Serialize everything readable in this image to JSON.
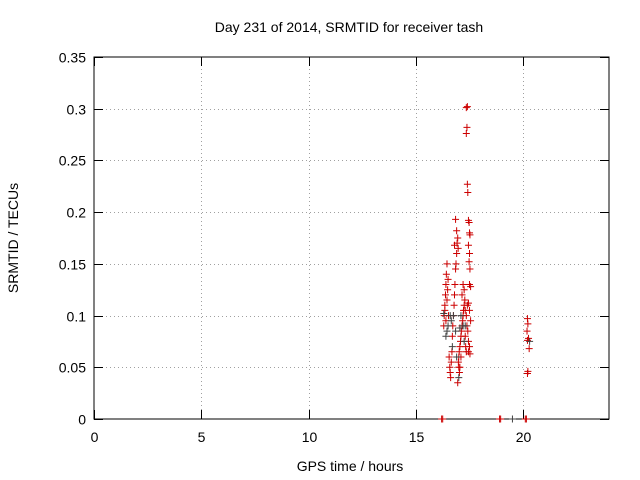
{
  "chart_data": {
    "type": "scatter",
    "title": "Day 231 of 2014, SRMTID for receiver tash",
    "xlabel": "GPS time / hours",
    "ylabel": "SRMTID / TECUs",
    "xlim": [
      0,
      24
    ],
    "ylim": [
      0,
      0.35
    ],
    "x_ticks": [
      0,
      5,
      10,
      15,
      20
    ],
    "x_tick_labels": [
      "0",
      "5",
      "10",
      "15",
      "20"
    ],
    "y_ticks": [
      0,
      0.05,
      0.1,
      0.15,
      0.2,
      0.25,
      0.3,
      0.35
    ],
    "y_tick_labels": [
      "0",
      "0.05",
      "0.1",
      "0.15",
      "0.2",
      "0.25",
      "0.3",
      "0.35"
    ],
    "grid": true,
    "colors": {
      "red_series": "#cc0000",
      "dark_series": "#404040"
    },
    "series": [
      {
        "color": "#cc0000",
        "marker": "plus",
        "points": [
          [
            16.2,
            0.0
          ],
          [
            16.25,
            0.0
          ],
          [
            18.9,
            0.0
          ],
          [
            18.95,
            0.0
          ],
          [
            20.1,
            0.0
          ],
          [
            20.15,
            0.0
          ],
          [
            16.3,
            0.09
          ],
          [
            16.32,
            0.1
          ],
          [
            16.35,
            0.11
          ],
          [
            16.38,
            0.12
          ],
          [
            16.4,
            0.13
          ],
          [
            16.42,
            0.14
          ],
          [
            16.45,
            0.15
          ],
          [
            16.35,
            0.105
          ],
          [
            16.4,
            0.095
          ],
          [
            16.45,
            0.115
          ],
          [
            16.48,
            0.125
          ],
          [
            16.5,
            0.135
          ],
          [
            16.52,
            0.1
          ],
          [
            16.55,
            0.06
          ],
          [
            16.58,
            0.05
          ],
          [
            16.6,
            0.045
          ],
          [
            16.62,
            0.04
          ],
          [
            16.65,
            0.055
          ],
          [
            16.68,
            0.065
          ],
          [
            16.7,
            0.08
          ],
          [
            16.72,
            0.09
          ],
          [
            16.75,
            0.1
          ],
          [
            16.78,
            0.11
          ],
          [
            16.8,
            0.12
          ],
          [
            16.82,
            0.13
          ],
          [
            16.85,
            0.145
          ],
          [
            16.87,
            0.15
          ],
          [
            16.9,
            0.16
          ],
          [
            16.92,
            0.17
          ],
          [
            16.95,
            0.175
          ],
          [
            16.97,
            0.165
          ],
          [
            16.85,
            0.193
          ],
          [
            16.9,
            0.182
          ],
          [
            16.8,
            0.168
          ],
          [
            17.0,
            0.06
          ],
          [
            17.02,
            0.065
          ],
          [
            17.05,
            0.07
          ],
          [
            17.08,
            0.075
          ],
          [
            17.1,
            0.08
          ],
          [
            17.12,
            0.085
          ],
          [
            17.0,
            0.05
          ],
          [
            17.03,
            0.045
          ],
          [
            16.95,
            0.035
          ],
          [
            16.98,
            0.055
          ],
          [
            17.05,
            0.05
          ],
          [
            17.1,
            0.06
          ],
          [
            17.15,
            0.09
          ],
          [
            17.18,
            0.095
          ],
          [
            17.2,
            0.1
          ],
          [
            17.22,
            0.105
          ],
          [
            17.25,
            0.11
          ],
          [
            17.28,
            0.115
          ],
          [
            17.15,
            0.12
          ],
          [
            17.2,
            0.13
          ],
          [
            17.25,
            0.125
          ],
          [
            17.3,
            0.105
          ],
          [
            17.35,
            0.1
          ],
          [
            17.4,
            0.11
          ],
          [
            17.3,
            0.08
          ],
          [
            17.32,
            0.07
          ],
          [
            17.35,
            0.065
          ],
          [
            17.38,
            0.09
          ],
          [
            17.42,
            0.085
          ],
          [
            17.45,
            0.075
          ],
          [
            17.35,
            0.301
          ],
          [
            17.4,
            0.302
          ],
          [
            17.38,
            0.282
          ],
          [
            17.35,
            0.276
          ],
          [
            17.4,
            0.227
          ],
          [
            17.42,
            0.219
          ],
          [
            17.45,
            0.192
          ],
          [
            17.48,
            0.19
          ],
          [
            17.5,
            0.18
          ],
          [
            17.52,
            0.178
          ],
          [
            17.45,
            0.168
          ],
          [
            17.5,
            0.16
          ],
          [
            17.48,
            0.152
          ],
          [
            17.52,
            0.145
          ],
          [
            17.5,
            0.13
          ],
          [
            17.55,
            0.128
          ],
          [
            17.45,
            0.112
          ],
          [
            17.5,
            0.105
          ],
          [
            17.55,
            0.095
          ],
          [
            17.5,
            0.07
          ],
          [
            17.52,
            0.063
          ],
          [
            17.45,
            0.065
          ],
          [
            20.2,
            0.097
          ],
          [
            20.22,
            0.092
          ],
          [
            20.18,
            0.085
          ],
          [
            20.25,
            0.078
          ],
          [
            20.2,
            0.076
          ],
          [
            20.28,
            0.068
          ],
          [
            20.22,
            0.046
          ],
          [
            20.2,
            0.044
          ]
        ]
      },
      {
        "color": "#404040",
        "marker": "plus",
        "points": [
          [
            16.4,
            0.08
          ],
          [
            16.5,
            0.09
          ],
          [
            16.6,
            0.1
          ],
          [
            16.7,
            0.07
          ],
          [
            16.75,
            0.1
          ],
          [
            16.9,
            0.06
          ],
          [
            17.0,
            0.04
          ],
          [
            17.1,
            0.1
          ],
          [
            17.2,
            0.09
          ],
          [
            17.3,
            0.09
          ],
          [
            16.3,
            0.102
          ],
          [
            16.45,
            0.085
          ],
          [
            16.65,
            0.095
          ],
          [
            16.85,
            0.085
          ],
          [
            17.05,
            0.088
          ],
          [
            17.25,
            0.075
          ],
          [
            19.5,
            0.0
          ],
          [
            20.3,
            0.075
          ]
        ]
      }
    ]
  }
}
